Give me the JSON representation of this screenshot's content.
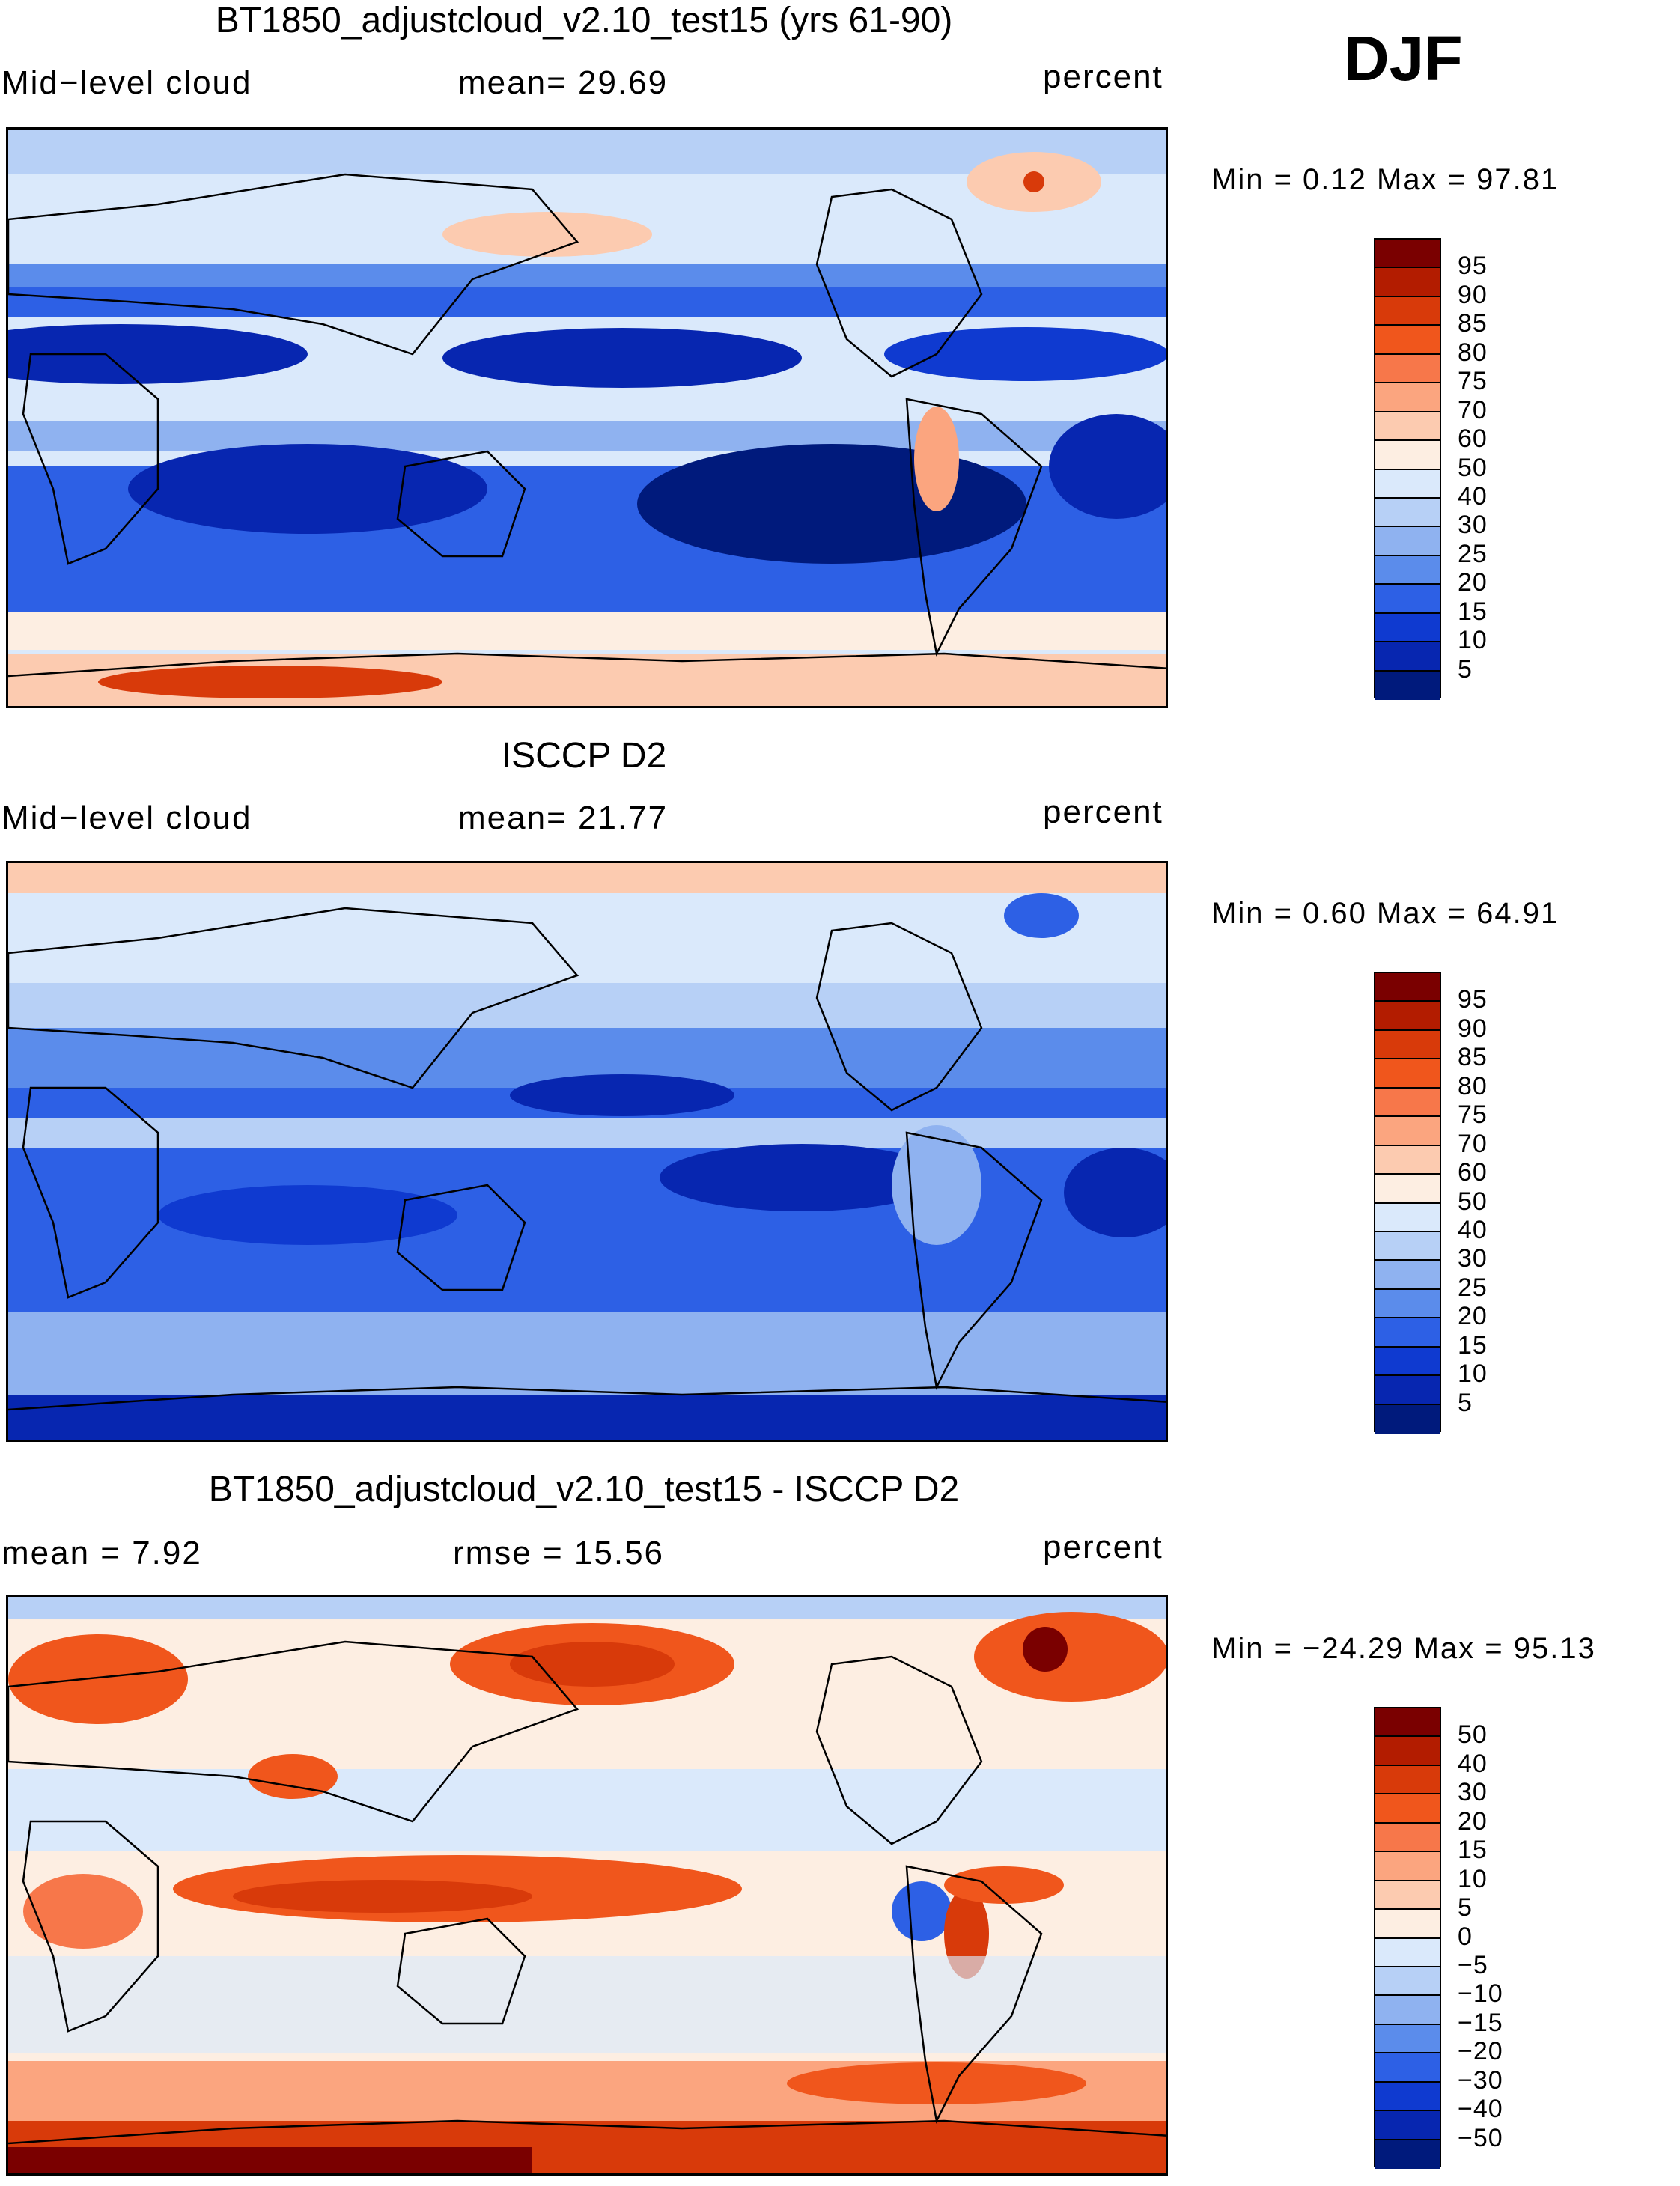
{
  "season": "DJF",
  "panels": [
    {
      "title": "BT1850_adjustcloud_v2.10_test15 (yrs 61-90)",
      "left_label": "Mid−level cloud",
      "mid_label": "mean=   29.69",
      "right_label": "percent",
      "minmax": "Min =      0.12  Max =     97.81",
      "legend_labels": [
        "95",
        "90",
        "85",
        "80",
        "75",
        "70",
        "60",
        "50",
        "40",
        "30",
        "25",
        "20",
        "15",
        "10",
        "5"
      ]
    },
    {
      "title": "ISCCP D2",
      "left_label": "Mid−level cloud",
      "mid_label": "mean=   21.77",
      "right_label": "percent",
      "minmax": "Min =      0.60  Max =     64.91",
      "legend_labels": [
        "95",
        "90",
        "85",
        "80",
        "75",
        "70",
        "60",
        "50",
        "40",
        "30",
        "25",
        "20",
        "15",
        "10",
        "5"
      ]
    },
    {
      "title": "BT1850_adjustcloud_v2.10_test15 - ISCCP D2",
      "left_label": "mean =     7.92",
      "mid_label": "rmse =    15.56",
      "right_label": "percent",
      "minmax": "Min = −24.29  Max =     95.13",
      "legend_labels": [
        "50",
        "40",
        "30",
        "20",
        "15",
        "10",
        "5",
        "0",
        "−5",
        "−10",
        "−15",
        "−20",
        "−30",
        "−40",
        "−50"
      ]
    }
  ],
  "colors": {
    "palette": [
      "#7a0000",
      "#b31c00",
      "#d83a0a",
      "#f0561c",
      "#f7774a",
      "#fba57f",
      "#fccbb0",
      "#fdeee2",
      "#dae9fb",
      "#b7d0f6",
      "#8fb2f0",
      "#5b8ceb",
      "#2d60e5",
      "#0f3ad0",
      "#0726b0",
      "#001a7c"
    ]
  },
  "chart_data": [
    {
      "type": "heatmap",
      "title": "BT1850_adjustcloud_v2.10_test15 (yrs 61-90)",
      "variable": "Mid-level cloud",
      "units": "percent",
      "mean": 29.69,
      "min": 0.12,
      "max": 97.81,
      "contour_levels": [
        5,
        10,
        15,
        20,
        25,
        30,
        40,
        50,
        60,
        70,
        75,
        80,
        85,
        90,
        95
      ]
    },
    {
      "type": "heatmap",
      "title": "ISCCP D2",
      "variable": "Mid-level cloud",
      "units": "percent",
      "mean": 21.77,
      "min": 0.6,
      "max": 64.91,
      "contour_levels": [
        5,
        10,
        15,
        20,
        25,
        30,
        40,
        50,
        60,
        70,
        75,
        80,
        85,
        90,
        95
      ]
    },
    {
      "type": "heatmap",
      "title": "BT1850_adjustcloud_v2.10_test15 - ISCCP D2",
      "units": "percent",
      "mean": 7.92,
      "rmse": 15.56,
      "min": -24.29,
      "max": 95.13,
      "contour_levels": [
        -50,
        -40,
        -30,
        -20,
        -15,
        -10,
        -5,
        0,
        5,
        10,
        15,
        20,
        30,
        40,
        50
      ]
    }
  ]
}
